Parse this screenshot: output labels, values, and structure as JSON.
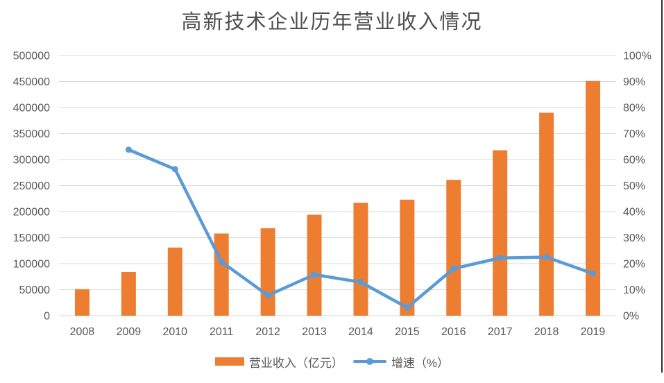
{
  "title": "高新技术企业历年营业收入情况",
  "colors": {
    "bar": "#ED7D31",
    "line": "#5B9BD5",
    "gridline": "#D9D9D9",
    "axis_text": "#595959",
    "title_text": "#4F4F4F"
  },
  "chart_data": {
    "type": "bar",
    "combo": "bar+line",
    "title": "高新技术企业历年营业收入情况",
    "categories": [
      "2008",
      "2009",
      "2010",
      "2011",
      "2012",
      "2013",
      "2014",
      "2015",
      "2016",
      "2017",
      "2018",
      "2019"
    ],
    "series": [
      {
        "name": "营业收入（亿元）",
        "type": "bar",
        "axis": "left",
        "color": "#ED7D31",
        "values": [
          51000,
          84000,
          131000,
          158000,
          168000,
          194000,
          217000,
          223000,
          261000,
          318000,
          390000,
          451000
        ]
      },
      {
        "name": "增速（%）",
        "type": "line",
        "axis": "right",
        "color": "#5B9BD5",
        "values": [
          null,
          63.8,
          56.3,
          20.7,
          7.8,
          15.8,
          12.9,
          3.1,
          18.1,
          22.2,
          22.5,
          16.2
        ]
      }
    ],
    "left_axis": {
      "min": 0,
      "max": 500000,
      "step": 50000,
      "tick_labels": [
        "0",
        "50000",
        "100000",
        "150000",
        "200000",
        "250000",
        "300000",
        "350000",
        "400000",
        "450000",
        "500000"
      ]
    },
    "right_axis": {
      "min": 0,
      "max": 100,
      "step": 10,
      "tick_labels": [
        "0%",
        "10%",
        "20%",
        "30%",
        "40%",
        "50%",
        "60%",
        "70%",
        "80%",
        "90%",
        "100%"
      ]
    },
    "grid": "horizontal",
    "legend_position": "bottom"
  },
  "legend": {
    "bar_label": "营业收入（亿元）",
    "line_label": "增速（%）"
  }
}
